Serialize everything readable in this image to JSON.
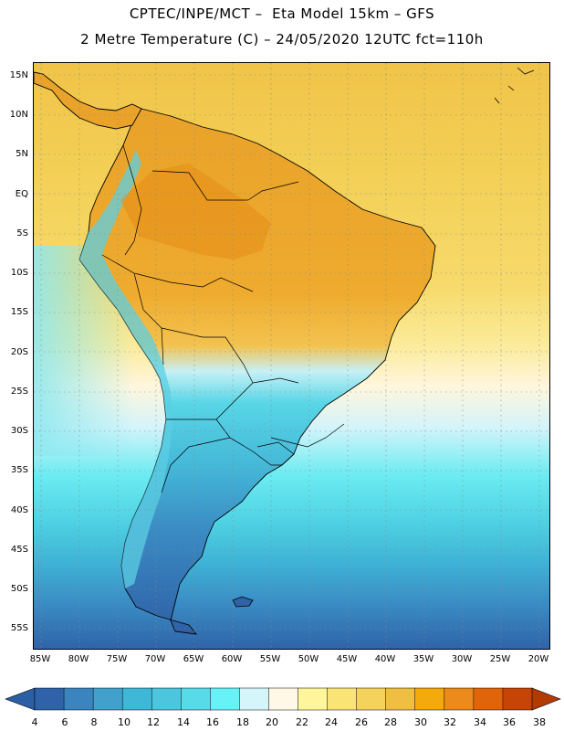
{
  "header": {
    "line1": "CPTEC/INPE/MCT –  Eta Model 15km – GFS",
    "line2": "2 Metre Temperature (C) – 24/05/2020 12UTC fct=110h"
  },
  "map": {
    "lat_labels": [
      "15N",
      "10N",
      "5N",
      "EQ",
      "5S",
      "10S",
      "15S",
      "20S",
      "25S",
      "30S",
      "35S",
      "40S",
      "45S",
      "50S",
      "55S"
    ],
    "lon_labels": [
      "85W",
      "80W",
      "75W",
      "70W",
      "65W",
      "60W",
      "55W",
      "50W",
      "45W",
      "40W",
      "35W",
      "30W",
      "25W",
      "20W"
    ]
  },
  "colorbar": {
    "labels": [
      "4",
      "6",
      "8",
      "10",
      "12",
      "14",
      "16",
      "18",
      "20",
      "22",
      "24",
      "26",
      "28",
      "30",
      "32",
      "34",
      "36",
      "38"
    ],
    "colors": [
      "#2f62a8",
      "#3a84c0",
      "#41a1cc",
      "#3fb7d6",
      "#4cc6de",
      "#58dbe8",
      "#66f2f6",
      "#d4f6fb",
      "#fff8e6",
      "#fff59a",
      "#fbe476",
      "#f5d25c",
      "#efbe42",
      "#f4a90c",
      "#ec8a1c",
      "#e0640a",
      "#c64406",
      "#b33c04"
    ],
    "low_color": "#2a5fa3",
    "high_color": "#b23b04"
  },
  "colors": {
    "ocean_warm": "#efc24a",
    "ocean_cold": "#2f62a8",
    "land_hot": "#e89a1c",
    "border": "#000000"
  }
}
